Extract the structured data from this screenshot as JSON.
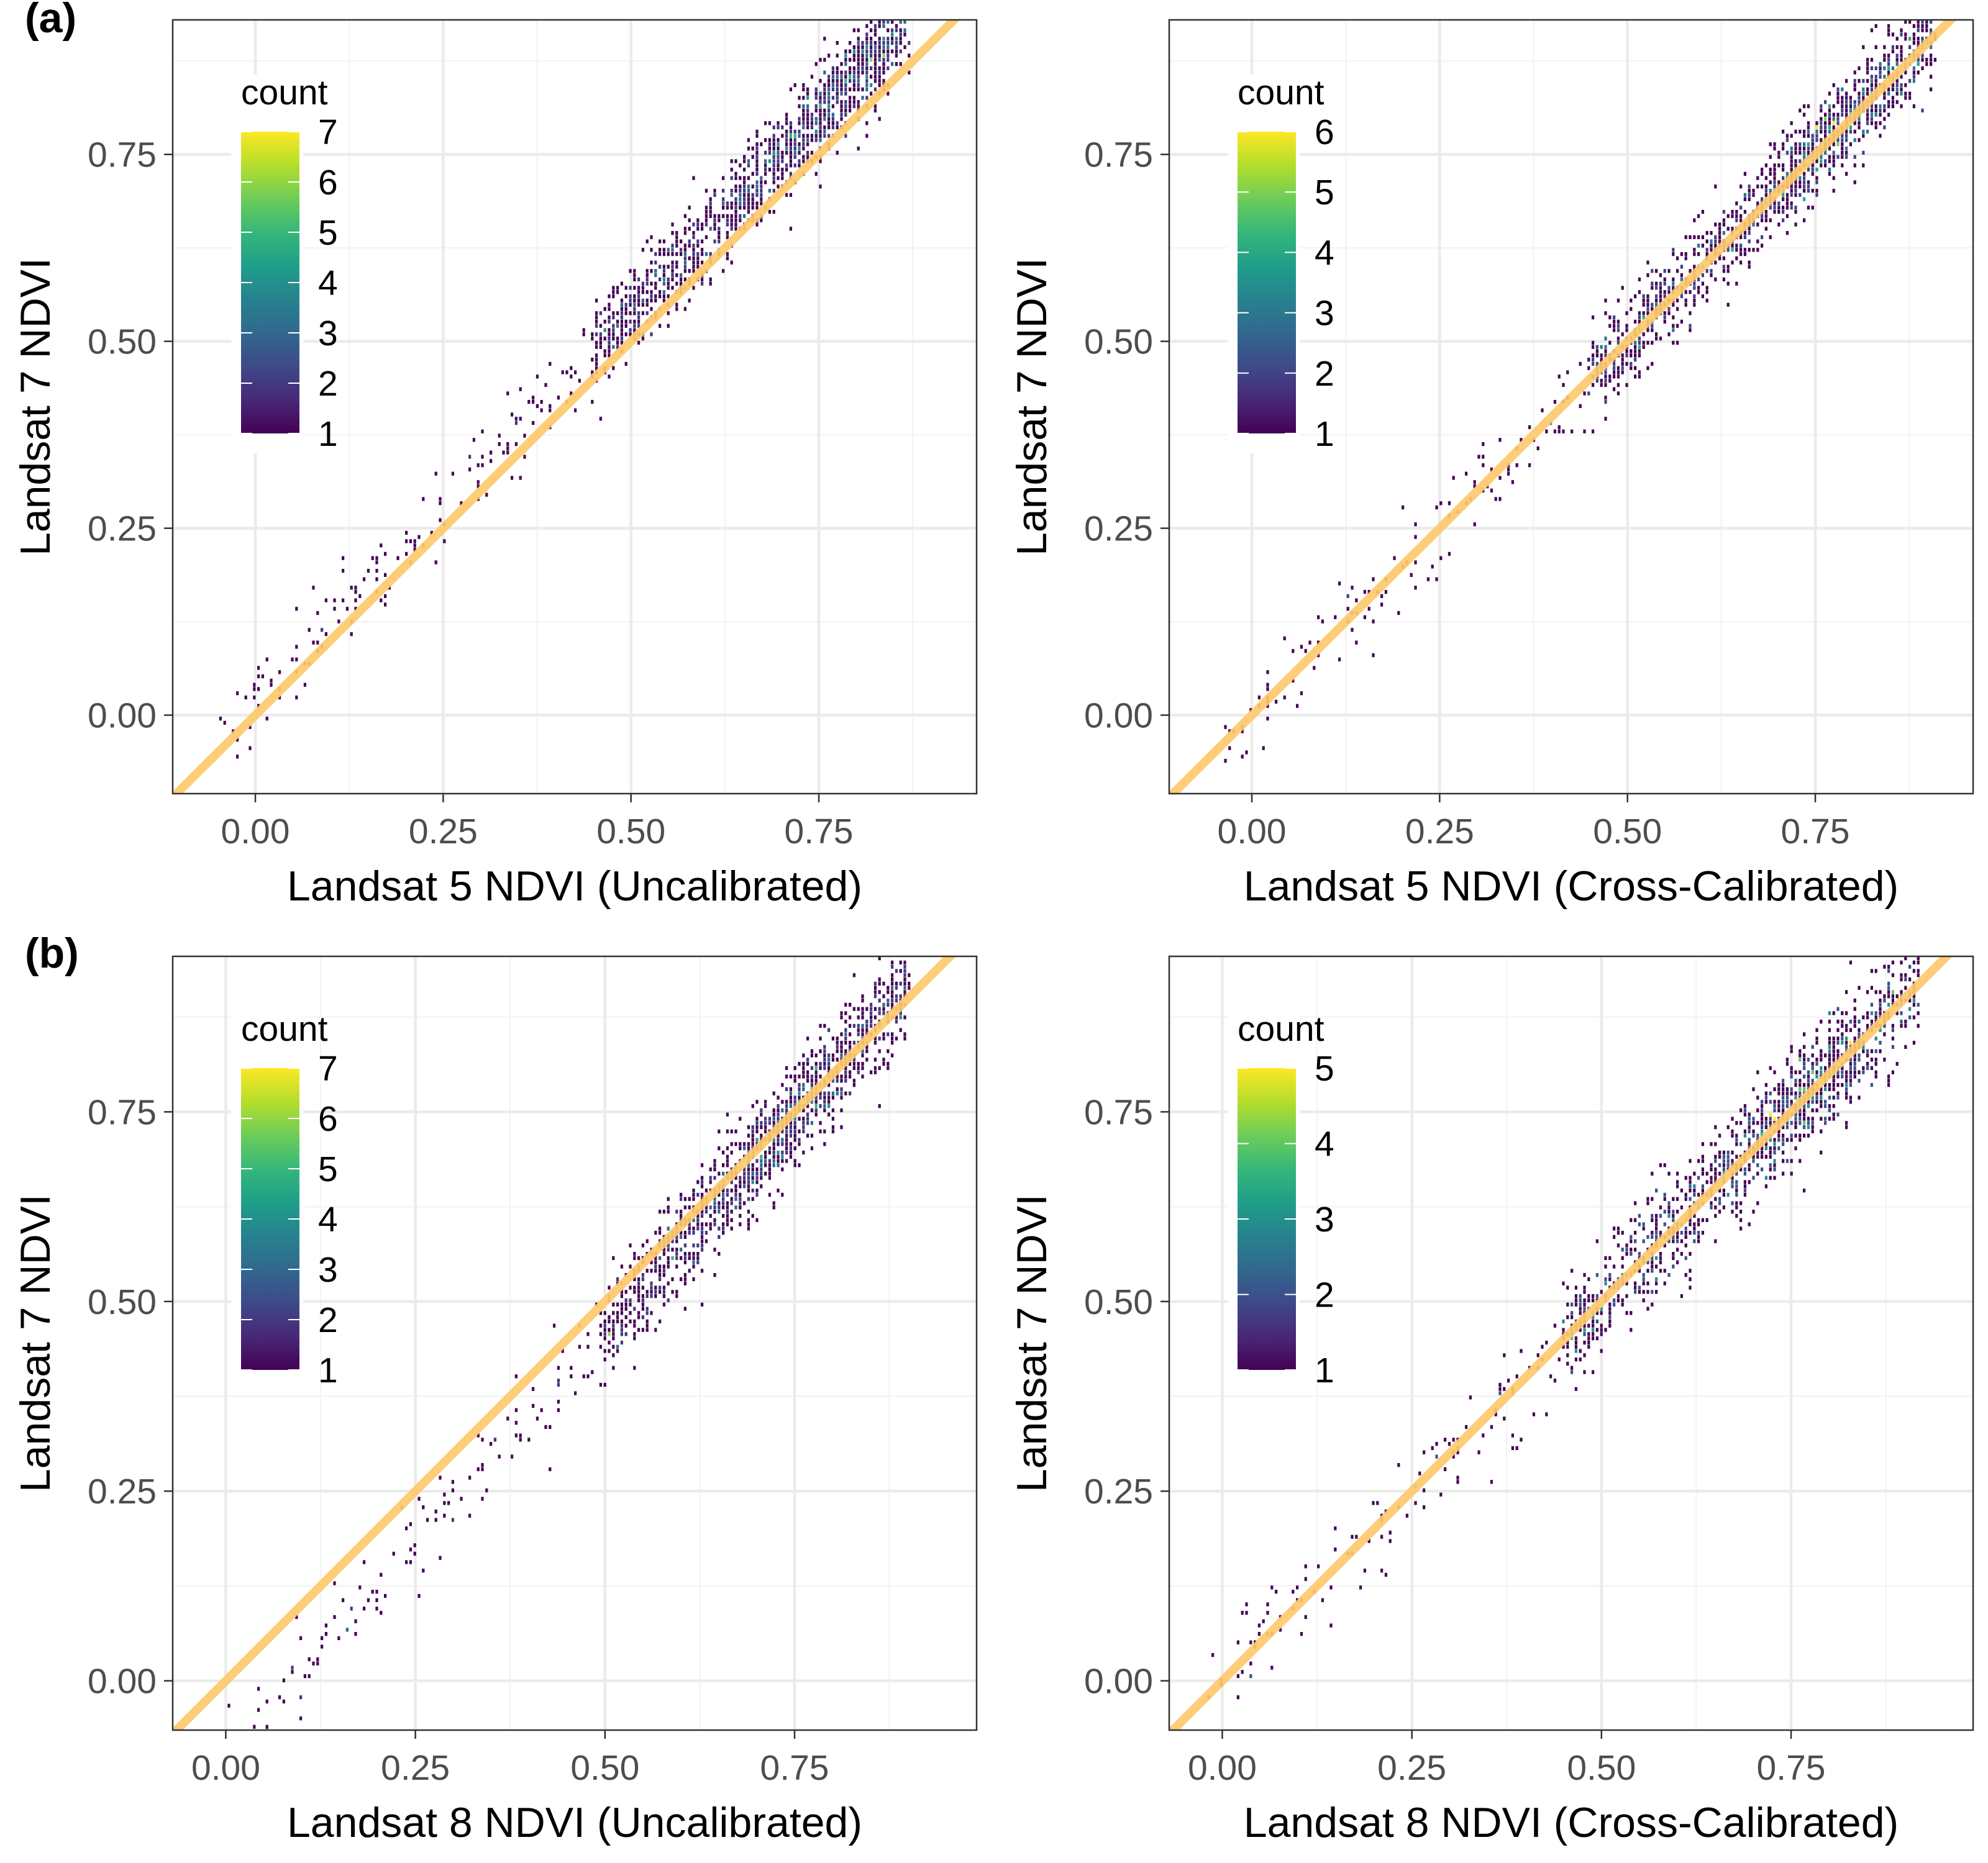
{
  "figure": {
    "panel_labels": [
      "(a)",
      "(b)"
    ]
  },
  "colors": {
    "background": "#ffffff",
    "grid_major": "#ebebeb",
    "grid_minor": "#f4f4f4",
    "panel_border": "#333333",
    "one_to_one_line": "#fdc96b",
    "viridis": [
      "#440154",
      "#482878",
      "#3e4a89",
      "#31688e",
      "#26828e",
      "#1f9e89",
      "#35b779",
      "#6dcd59",
      "#b4de2c",
      "#fde725"
    ]
  },
  "chart_data": [
    {
      "type": "heatmap",
      "kind": "2d-bin-count",
      "row": 0,
      "col": 0,
      "xlabel": "Landsat 5 NDVI (Uncalibrated)",
      "ylabel": "Landsat 7 NDVI",
      "xlim": [
        -0.11,
        0.96
      ],
      "ylim": [
        -0.105,
        0.93
      ],
      "xticks": [
        0,
        0.25,
        0.5,
        0.75
      ],
      "xtick_labels": [
        "0.00",
        "0.25",
        "0.50",
        "0.75"
      ],
      "yticks": [
        0,
        0.25,
        0.5,
        0.75
      ],
      "ytick_labels": [
        "0.00",
        "0.25",
        "0.50",
        "0.75"
      ],
      "grid": true,
      "reference_line": {
        "slope": 1,
        "intercept": 0
      },
      "legend": {
        "title": "count",
        "placement": "top-left",
        "min": 1,
        "max": 7,
        "breaks": [
          "1",
          "2",
          "3",
          "4",
          "5",
          "6",
          "7"
        ]
      },
      "cloud": {
        "x_range": [
          -0.05,
          0.87
        ],
        "slope": 1.055,
        "intercept": 0.01,
        "noise": 0.03,
        "n": 1500,
        "seed": 11,
        "hotspot_x": 0.78,
        "dense_x": [
          0.45,
          0.87
        ]
      }
    },
    {
      "type": "heatmap",
      "kind": "2d-bin-count",
      "row": 0,
      "col": 1,
      "xlabel": "Landsat 5 NDVI (Cross-Calibrated)",
      "ylabel": "Landsat 7 NDVI",
      "xlim": [
        -0.11,
        0.96
      ],
      "ylim": [
        -0.105,
        0.93
      ],
      "xticks": [
        0,
        0.25,
        0.5,
        0.75
      ],
      "xtick_labels": [
        "0.00",
        "0.25",
        "0.50",
        "0.75"
      ],
      "yticks": [
        0,
        0.25,
        0.5,
        0.75
      ],
      "ytick_labels": [
        "0.00",
        "0.25",
        "0.50",
        "0.75"
      ],
      "grid": true,
      "reference_line": {
        "slope": 1,
        "intercept": 0
      },
      "legend": {
        "title": "count",
        "placement": "top-left",
        "min": 1,
        "max": 6,
        "breaks": [
          "1",
          "2",
          "3",
          "4",
          "5",
          "6"
        ]
      },
      "cloud": {
        "x_range": [
          -0.04,
          0.91
        ],
        "slope": 1.0,
        "intercept": 0.0,
        "noise": 0.03,
        "n": 1500,
        "seed": 23,
        "hotspot_x": 0.78,
        "dense_x": [
          0.45,
          0.91
        ]
      }
    },
    {
      "type": "heatmap",
      "kind": "2d-bin-count",
      "row": 1,
      "col": 0,
      "xlabel": "Landsat 8 NDVI (Uncalibrated)",
      "ylabel": "Landsat 7 NDVI",
      "xlim": [
        -0.07,
        0.99
      ],
      "ylim": [
        -0.065,
        0.955
      ],
      "xticks": [
        0,
        0.25,
        0.5,
        0.75
      ],
      "xtick_labels": [
        "0.00",
        "0.25",
        "0.50",
        "0.75"
      ],
      "yticks": [
        0,
        0.25,
        0.5,
        0.75
      ],
      "ytick_labels": [
        "0.00",
        "0.25",
        "0.50",
        "0.75"
      ],
      "grid": true,
      "reference_line": {
        "slope": 1,
        "intercept": 0
      },
      "legend": {
        "title": "count",
        "placement": "top-left",
        "min": 1,
        "max": 7,
        "breaks": [
          "1",
          "2",
          "3",
          "4",
          "5",
          "6",
          "7"
        ]
      },
      "cloud": {
        "x_range": [
          0.0,
          0.9
        ],
        "slope": 1.14,
        "intercept": -0.11,
        "noise": 0.032,
        "n": 1500,
        "seed": 37,
        "hotspot_x": 0.74,
        "dense_x": [
          0.5,
          0.9
        ]
      }
    },
    {
      "type": "heatmap",
      "kind": "2d-bin-count",
      "row": 1,
      "col": 1,
      "xlabel": "Landsat 8 NDVI (Cross-Calibrated)",
      "ylabel": "Landsat 7 NDVI",
      "xlim": [
        -0.07,
        0.99
      ],
      "ylim": [
        -0.065,
        0.955
      ],
      "xticks": [
        0,
        0.25,
        0.5,
        0.75
      ],
      "xtick_labels": [
        "0.00",
        "0.25",
        "0.50",
        "0.75"
      ],
      "yticks": [
        0,
        0.25,
        0.5,
        0.75
      ],
      "ytick_labels": [
        "0.00",
        "0.25",
        "0.50",
        "0.75"
      ],
      "grid": true,
      "reference_line": {
        "slope": 1,
        "intercept": 0
      },
      "legend": {
        "title": "count",
        "placement": "top-left",
        "min": 1,
        "max": 5,
        "breaks": [
          "1",
          "2",
          "3",
          "4",
          "5"
        ]
      },
      "cloud": {
        "x_range": [
          -0.02,
          0.92
        ],
        "slope": 1.0,
        "intercept": 0.0,
        "noise": 0.035,
        "n": 1500,
        "seed": 53,
        "hotspot_x": 0.76,
        "dense_x": [
          0.45,
          0.92
        ]
      }
    }
  ]
}
